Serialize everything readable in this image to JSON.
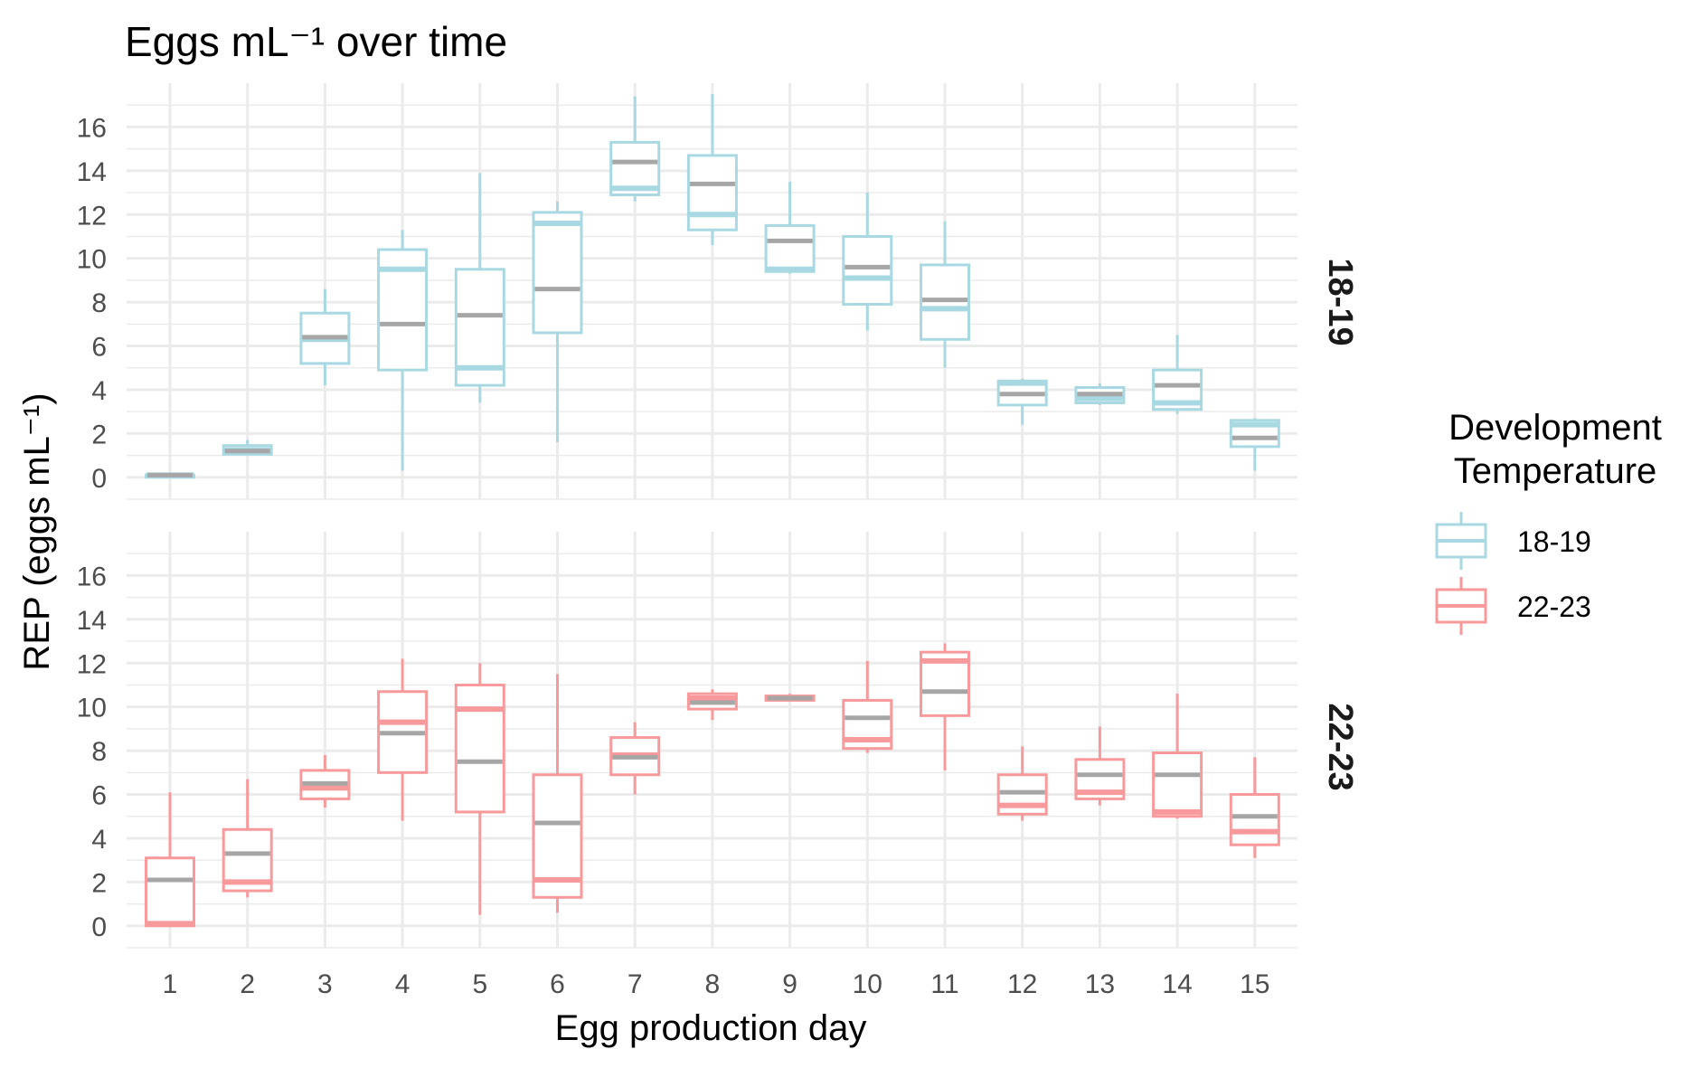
{
  "chart_data": {
    "type": "boxplot",
    "title": "Eggs mL⁻¹ over time",
    "xlabel": "Egg production day",
    "ylabel": "REP (eggs mL⁻¹)",
    "categories": [
      "1",
      "2",
      "3",
      "4",
      "5",
      "6",
      "7",
      "8",
      "9",
      "10",
      "11",
      "12",
      "13",
      "14",
      "15"
    ],
    "ylim": [
      -1,
      18
    ],
    "yticks": [
      "0",
      "2",
      "4",
      "6",
      "8",
      "10",
      "12",
      "14",
      "16"
    ],
    "grid": true,
    "facet_labels": [
      "18-19",
      "22-23"
    ],
    "legend": {
      "title_line1": "Development",
      "title_line2": "Temperature",
      "entries": [
        "18-19",
        "22-23"
      ],
      "placement": "right"
    },
    "colors": {
      "18-19": "#a8d8e2",
      "22-23": "#f8999b",
      "mean_line": "#a6a6a6"
    },
    "series": [
      {
        "name": "18-19",
        "boxes": [
          {
            "day": 1,
            "min": 0.0,
            "q1": 0.0,
            "median": 0.1,
            "q3": 0.1,
            "max": 0.1,
            "mean": 0.1
          },
          {
            "day": 2,
            "min": 1.0,
            "q1": 1.05,
            "median": 1.25,
            "q3": 1.45,
            "max": 1.7,
            "mean": 1.2
          },
          {
            "day": 3,
            "min": 4.2,
            "q1": 5.2,
            "median": 6.3,
            "q3": 7.5,
            "max": 8.6,
            "mean": 6.4
          },
          {
            "day": 4,
            "min": 0.3,
            "q1": 4.9,
            "median": 9.5,
            "q3": 10.4,
            "max": 11.3,
            "mean": 7.0
          },
          {
            "day": 5,
            "min": 3.4,
            "q1": 4.2,
            "median": 5.0,
            "q3": 9.5,
            "max": 13.9,
            "mean": 7.4
          },
          {
            "day": 6,
            "min": 1.6,
            "q1": 6.6,
            "median": 11.6,
            "q3": 12.1,
            "max": 12.6,
            "mean": 8.6
          },
          {
            "day": 7,
            "min": 12.6,
            "q1": 12.9,
            "median": 13.2,
            "q3": 15.3,
            "max": 17.4,
            "mean": 14.4
          },
          {
            "day": 8,
            "min": 10.6,
            "q1": 11.3,
            "median": 12.0,
            "q3": 14.7,
            "max": 17.5,
            "mean": 13.4
          },
          {
            "day": 9,
            "min": 9.3,
            "q1": 9.4,
            "median": 9.5,
            "q3": 11.5,
            "max": 13.5,
            "mean": 10.8
          },
          {
            "day": 10,
            "min": 6.7,
            "q1": 7.9,
            "median": 9.1,
            "q3": 11.0,
            "max": 13.0,
            "mean": 9.6
          },
          {
            "day": 11,
            "min": 5.0,
            "q1": 6.3,
            "median": 7.7,
            "q3": 9.7,
            "max": 11.7,
            "mean": 8.1
          },
          {
            "day": 12,
            "min": 2.4,
            "q1": 3.3,
            "median": 4.3,
            "q3": 4.4,
            "max": 4.5,
            "mean": 3.8
          },
          {
            "day": 13,
            "min": 3.3,
            "q1": 3.4,
            "median": 3.6,
            "q3": 4.1,
            "max": 4.3,
            "mean": 3.8
          },
          {
            "day": 14,
            "min": 2.9,
            "q1": 3.1,
            "median": 3.4,
            "q3": 4.9,
            "max": 6.5,
            "mean": 4.2
          },
          {
            "day": 15,
            "min": 0.3,
            "q1": 1.4,
            "median": 2.4,
            "q3": 2.6,
            "max": 2.7,
            "mean": 1.8
          }
        ]
      },
      {
        "name": "22-23",
        "boxes": [
          {
            "day": 1,
            "min": 0.0,
            "q1": 0.0,
            "median": 0.1,
            "q3": 3.1,
            "max": 6.1,
            "mean": 2.1
          },
          {
            "day": 2,
            "min": 1.3,
            "q1": 1.6,
            "median": 2.0,
            "q3": 4.4,
            "max": 6.7,
            "mean": 3.3
          },
          {
            "day": 3,
            "min": 5.4,
            "q1": 5.8,
            "median": 6.3,
            "q3": 7.1,
            "max": 7.8,
            "mean": 6.5
          },
          {
            "day": 4,
            "min": 4.8,
            "q1": 7.0,
            "median": 9.3,
            "q3": 10.7,
            "max": 12.2,
            "mean": 8.8
          },
          {
            "day": 5,
            "min": 0.5,
            "q1": 5.2,
            "median": 9.9,
            "q3": 11.0,
            "max": 12.0,
            "mean": 7.5
          },
          {
            "day": 6,
            "min": 0.6,
            "q1": 1.3,
            "median": 2.1,
            "q3": 6.9,
            "max": 11.5,
            "mean": 4.7
          },
          {
            "day": 7,
            "min": 6.0,
            "q1": 6.9,
            "median": 7.8,
            "q3": 8.6,
            "max": 9.3,
            "mean": 7.7
          },
          {
            "day": 8,
            "min": 9.4,
            "q1": 9.9,
            "median": 10.4,
            "q3": 10.6,
            "max": 10.8,
            "mean": 10.2
          },
          {
            "day": 9,
            "min": 10.3,
            "q1": 10.3,
            "median": 10.4,
            "q3": 10.5,
            "max": 10.6,
            "mean": 10.4
          },
          {
            "day": 10,
            "min": 7.9,
            "q1": 8.1,
            "median": 8.5,
            "q3": 10.3,
            "max": 12.1,
            "mean": 9.5
          },
          {
            "day": 11,
            "min": 7.1,
            "q1": 9.6,
            "median": 12.1,
            "q3": 12.5,
            "max": 12.9,
            "mean": 10.7
          },
          {
            "day": 12,
            "min": 4.8,
            "q1": 5.1,
            "median": 5.5,
            "q3": 6.9,
            "max": 8.2,
            "mean": 6.1
          },
          {
            "day": 13,
            "min": 5.5,
            "q1": 5.8,
            "median": 6.1,
            "q3": 7.6,
            "max": 9.1,
            "mean": 6.9
          },
          {
            "day": 14,
            "min": 4.9,
            "q1": 5.0,
            "median": 5.2,
            "q3": 7.9,
            "max": 10.6,
            "mean": 6.9
          },
          {
            "day": 15,
            "min": 3.1,
            "q1": 3.7,
            "median": 4.3,
            "q3": 6.0,
            "max": 7.7,
            "mean": 5.0
          }
        ]
      }
    ]
  }
}
